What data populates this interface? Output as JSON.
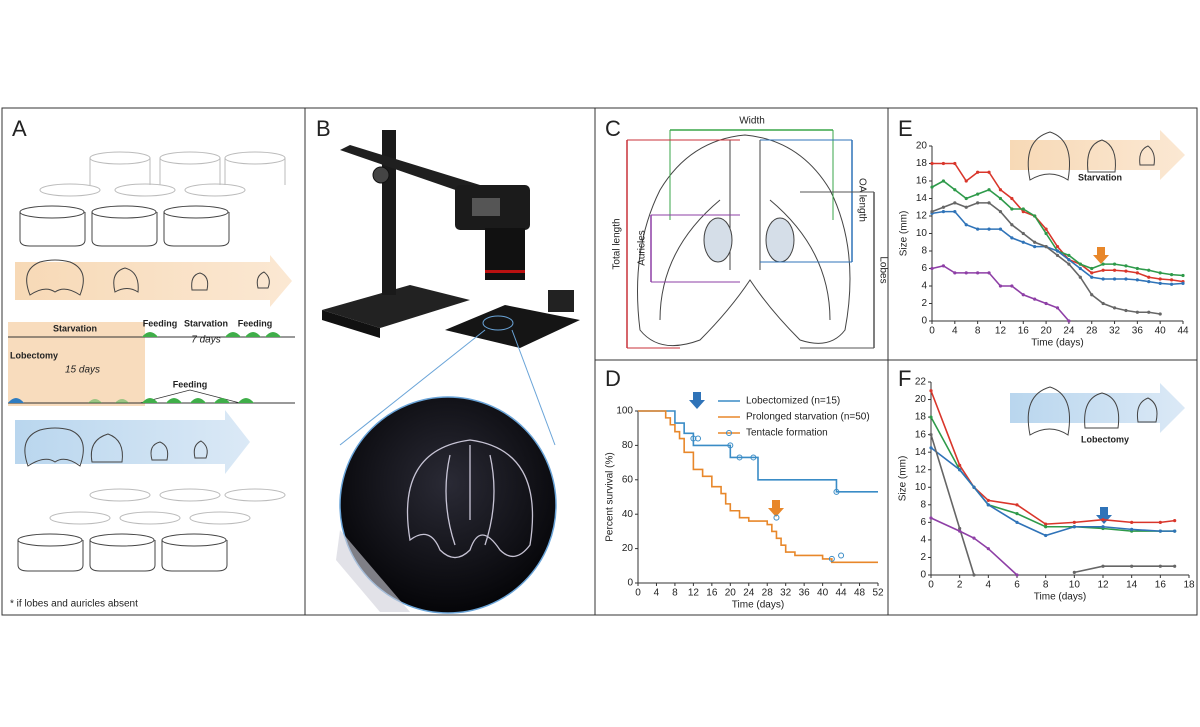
{
  "panels": {
    "a": {
      "label": "A",
      "starvation": "Starvation",
      "feeding_1": "Feeding",
      "starvation_2": "Starvation",
      "days_7": "7 days",
      "feeding_2": "Feeding",
      "lobectomy": "Lobectomy",
      "days_15": "15 days",
      "feeding_3": "Feeding",
      "footnote": "* if lobes and auricles absent"
    },
    "b": {
      "label": "B"
    },
    "c": {
      "label": "C",
      "width": "Width",
      "total_length": "Total length",
      "auricles": "Auricles",
      "oa_length": "OA length",
      "lobes": "Lobes"
    }
  },
  "chart_data": [
    {
      "type": "line",
      "panel": "D",
      "step": true,
      "xlabel": "Time (days)",
      "ylabel": "Percent survival (%)",
      "xlim": [
        0,
        52
      ],
      "xticks": [
        0,
        4,
        8,
        12,
        16,
        20,
        24,
        28,
        32,
        36,
        40,
        44,
        48,
        52
      ],
      "ylim": [
        0,
        100
      ],
      "yticks": [
        0,
        20,
        40,
        60,
        80,
        100
      ],
      "series": [
        {
          "name": "Lobectomized (n=15)",
          "color": "#3a8cc6",
          "x": [
            0,
            8,
            10,
            12,
            20,
            26,
            43,
            52
          ],
          "values": [
            100,
            93,
            87,
            80,
            73,
            60,
            53,
            53
          ]
        },
        {
          "name": "Prolonged starvation (n=50)",
          "color": "#e8872a",
          "x": [
            0,
            6,
            7,
            8,
            9,
            10,
            12,
            14,
            16,
            18,
            19,
            20,
            22,
            24,
            28,
            29,
            30,
            31,
            32,
            34,
            40,
            42,
            52
          ],
          "values": [
            100,
            96,
            92,
            88,
            84,
            76,
            66,
            62,
            56,
            52,
            46,
            42,
            38,
            36,
            34,
            30,
            26,
            22,
            18,
            16,
            14,
            12,
            12
          ]
        },
        {
          "name": "Tentacle formation",
          "color": "#3a8cc6",
          "marker": true,
          "x": [
            12,
            13,
            20,
            22,
            25,
            43,
            30,
            42,
            44
          ],
          "values": [
            84,
            84,
            80,
            73,
            73,
            53,
            38,
            14,
            16
          ]
        }
      ]
    },
    {
      "type": "line",
      "panel": "E",
      "xlabel": "Time (days)",
      "ylabel": "Size (mm)",
      "annotation": "Starvation",
      "xlim": [
        0,
        44
      ],
      "xticks": [
        0,
        4,
        8,
        12,
        16,
        20,
        24,
        28,
        32,
        36,
        40,
        44
      ],
      "ylim": [
        0,
        20
      ],
      "yticks": [
        0,
        2,
        4,
        6,
        8,
        10,
        12,
        14,
        16,
        18,
        20
      ],
      "x": [
        0,
        2,
        4,
        6,
        8,
        10,
        12,
        14,
        16,
        18,
        20,
        22,
        24,
        26,
        28,
        30,
        32,
        34,
        36,
        38,
        40,
        42,
        44
      ],
      "series": [
        {
          "name": null,
          "color": "#d9362b",
          "values": [
            18,
            18,
            18,
            16,
            17,
            17,
            15,
            14,
            12.5,
            12,
            10.5,
            8.5,
            7,
            6.5,
            5.5,
            5.8,
            5.8,
            5.7,
            5.5,
            5,
            4.8,
            4.7,
            4.5
          ]
        },
        {
          "name": null,
          "color": "#2e9a4a",
          "values": [
            15.3,
            16,
            15,
            14,
            14.5,
            15,
            14,
            12.8,
            12.8,
            12,
            10,
            8,
            7.5,
            6.5,
            6,
            6.5,
            6.5,
            6.3,
            6,
            5.8,
            5.5,
            5.3,
            5.2
          ]
        },
        {
          "name": null,
          "color": "#2f73b8",
          "values": [
            12.3,
            12.5,
            12.5,
            11,
            10.5,
            10.5,
            10.5,
            9.5,
            9,
            8.5,
            8.5,
            8,
            7,
            6,
            5,
            4.8,
            4.8,
            4.8,
            4.7,
            4.5,
            4.3,
            4.2,
            4.3
          ]
        },
        {
          "name": null,
          "color": "#666666",
          "values": [
            12.5,
            13,
            13.5,
            13,
            13.5,
            13.5,
            12.5,
            11,
            10,
            9,
            8.5,
            7.5,
            6.5,
            5,
            3,
            2,
            1.5,
            1.2,
            1,
            1,
            0.8,
            null,
            null
          ]
        },
        {
          "name": null,
          "color": "#8e3fa6",
          "values": [
            6,
            6.3,
            5.5,
            5.5,
            5.5,
            5.5,
            4,
            4,
            3,
            2.5,
            2,
            1.5,
            0,
            null,
            null,
            null,
            null,
            null,
            null,
            null,
            null,
            null,
            null
          ]
        }
      ]
    },
    {
      "type": "line",
      "panel": "F",
      "xlabel": "Time (days)",
      "ylabel": "Size (mm)",
      "annotation": "Lobectomy",
      "xlim": [
        0,
        18
      ],
      "xticks": [
        0,
        2,
        4,
        6,
        8,
        10,
        12,
        14,
        16,
        18
      ],
      "ylim": [
        0,
        22
      ],
      "yticks": [
        0,
        2,
        4,
        6,
        8,
        10,
        12,
        14,
        16,
        18,
        20,
        22
      ],
      "x": [
        0,
        2,
        3,
        4,
        6,
        8,
        10,
        12,
        14,
        16,
        17
      ],
      "series": [
        {
          "name": null,
          "color": "#d9362b",
          "values": [
            21,
            12.5,
            10,
            8.5,
            8,
            5.8,
            6,
            6.3,
            6,
            6,
            6.2
          ]
        },
        {
          "name": null,
          "color": "#2e9a4a",
          "values": [
            18,
            12,
            10,
            8,
            7,
            5.5,
            5.5,
            5.3,
            5,
            5,
            5
          ]
        },
        {
          "name": null,
          "color": "#2f73b8",
          "values": [
            14.5,
            12,
            10,
            8,
            6,
            4.5,
            5.5,
            5.5,
            5.2,
            5,
            5
          ]
        },
        {
          "name": null,
          "color": "#666666",
          "values": [
            16,
            5.3,
            0,
            null,
            null,
            null,
            0.3,
            1,
            1,
            1,
            1
          ]
        },
        {
          "name": null,
          "color": "#8e3fa6",
          "values": [
            6.5,
            5,
            4.2,
            3,
            0,
            null,
            null,
            null,
            null,
            null,
            null
          ]
        }
      ]
    }
  ]
}
